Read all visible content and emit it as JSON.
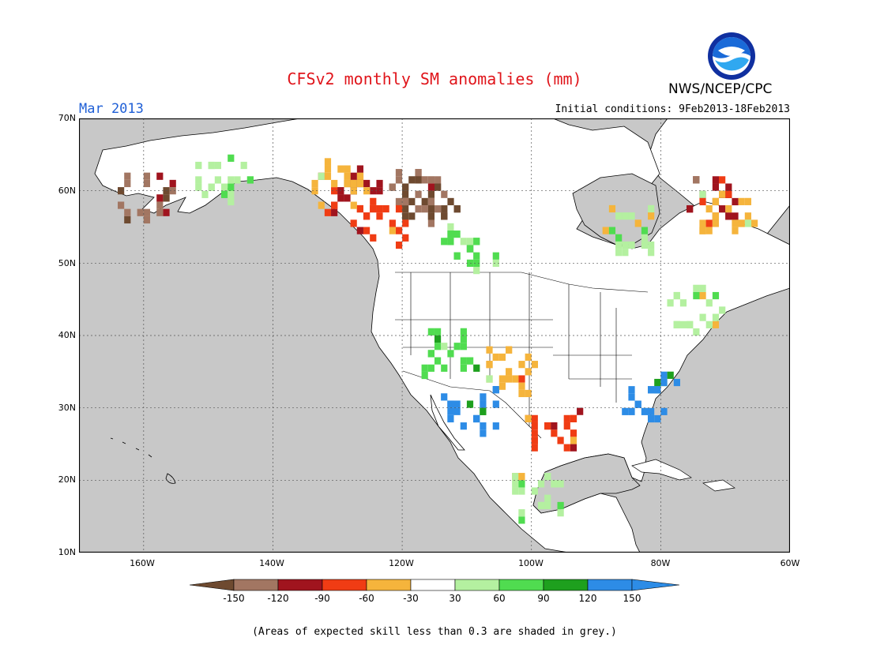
{
  "title": "CFSv2 monthly SM anomalies (mm)",
  "month_label": "Mar 2013",
  "initial_conditions": "Initial conditions: 9Feb2013-18Feb2013",
  "agency": "NWS/NCEP/CPC",
  "logo_text": "NOAA",
  "lat_labels": [
    "70N",
    "60N",
    "50N",
    "40N",
    "30N",
    "20N",
    "10N"
  ],
  "lon_labels": [
    "160W",
    "140W",
    "120W",
    "100W",
    "80W",
    "60W"
  ],
  "note": "(Areas of expected skill less than 0.3 are shaded in grey.)",
  "colors": {
    "grey_skill": "#c8c8c8",
    "ocean": "#c8c8c8",
    "land_white": "#ffffff"
  },
  "legend": {
    "labels": [
      "-150",
      "-120",
      "-90",
      "-60",
      "-30",
      "30",
      "60",
      "90",
      "120",
      "150"
    ],
    "colors": [
      "#6e4a30",
      "#a27662",
      "#a0141e",
      "#f03c14",
      "#f5b43c",
      "#ffffff",
      "#b4f0a0",
      "#50dc50",
      "#1ea01e",
      "#2d8ce6",
      "#2d8ce6"
    ]
  },
  "anomaly_patches": [
    {
      "lon": -128,
      "lat": 60.5,
      "cls": "neg90"
    },
    {
      "lon": -118,
      "lat": 60.0,
      "cls": "neg120"
    },
    {
      "lon": -116,
      "lat": 59.0,
      "cls": "negmax"
    },
    {
      "lon": -124,
      "lat": 56.0,
      "cls": "neg60"
    },
    {
      "lon": -130,
      "lat": 61.5,
      "cls": "neg30"
    },
    {
      "lon": -110,
      "lat": 52.5,
      "cls": "pos90"
    },
    {
      "lon": -113,
      "lat": 38.0,
      "cls": "pos90"
    },
    {
      "lon": -110,
      "lat": 30.0,
      "cls": "pos150"
    },
    {
      "lon": -104,
      "lat": 35.5,
      "cls": "neg30"
    },
    {
      "lon": -97,
      "lat": 27.0,
      "cls": "neg60"
    },
    {
      "lon": -82,
      "lat": 32.0,
      "cls": "pos150"
    },
    {
      "lon": -148,
      "lat": 62.0,
      "cls": "pos60"
    },
    {
      "lon": -160,
      "lat": 59.5,
      "cls": "neg120"
    },
    {
      "lon": -85,
      "lat": 55.0,
      "cls": "pos60"
    },
    {
      "lon": -75,
      "lat": 44.0,
      "cls": "pos60"
    },
    {
      "lon": -72,
      "lat": 60.0,
      "cls": "neg90"
    },
    {
      "lon": -70,
      "lat": 57.0,
      "cls": "neg30"
    },
    {
      "lon": -100,
      "lat": 18.0,
      "cls": "pos60"
    }
  ]
}
